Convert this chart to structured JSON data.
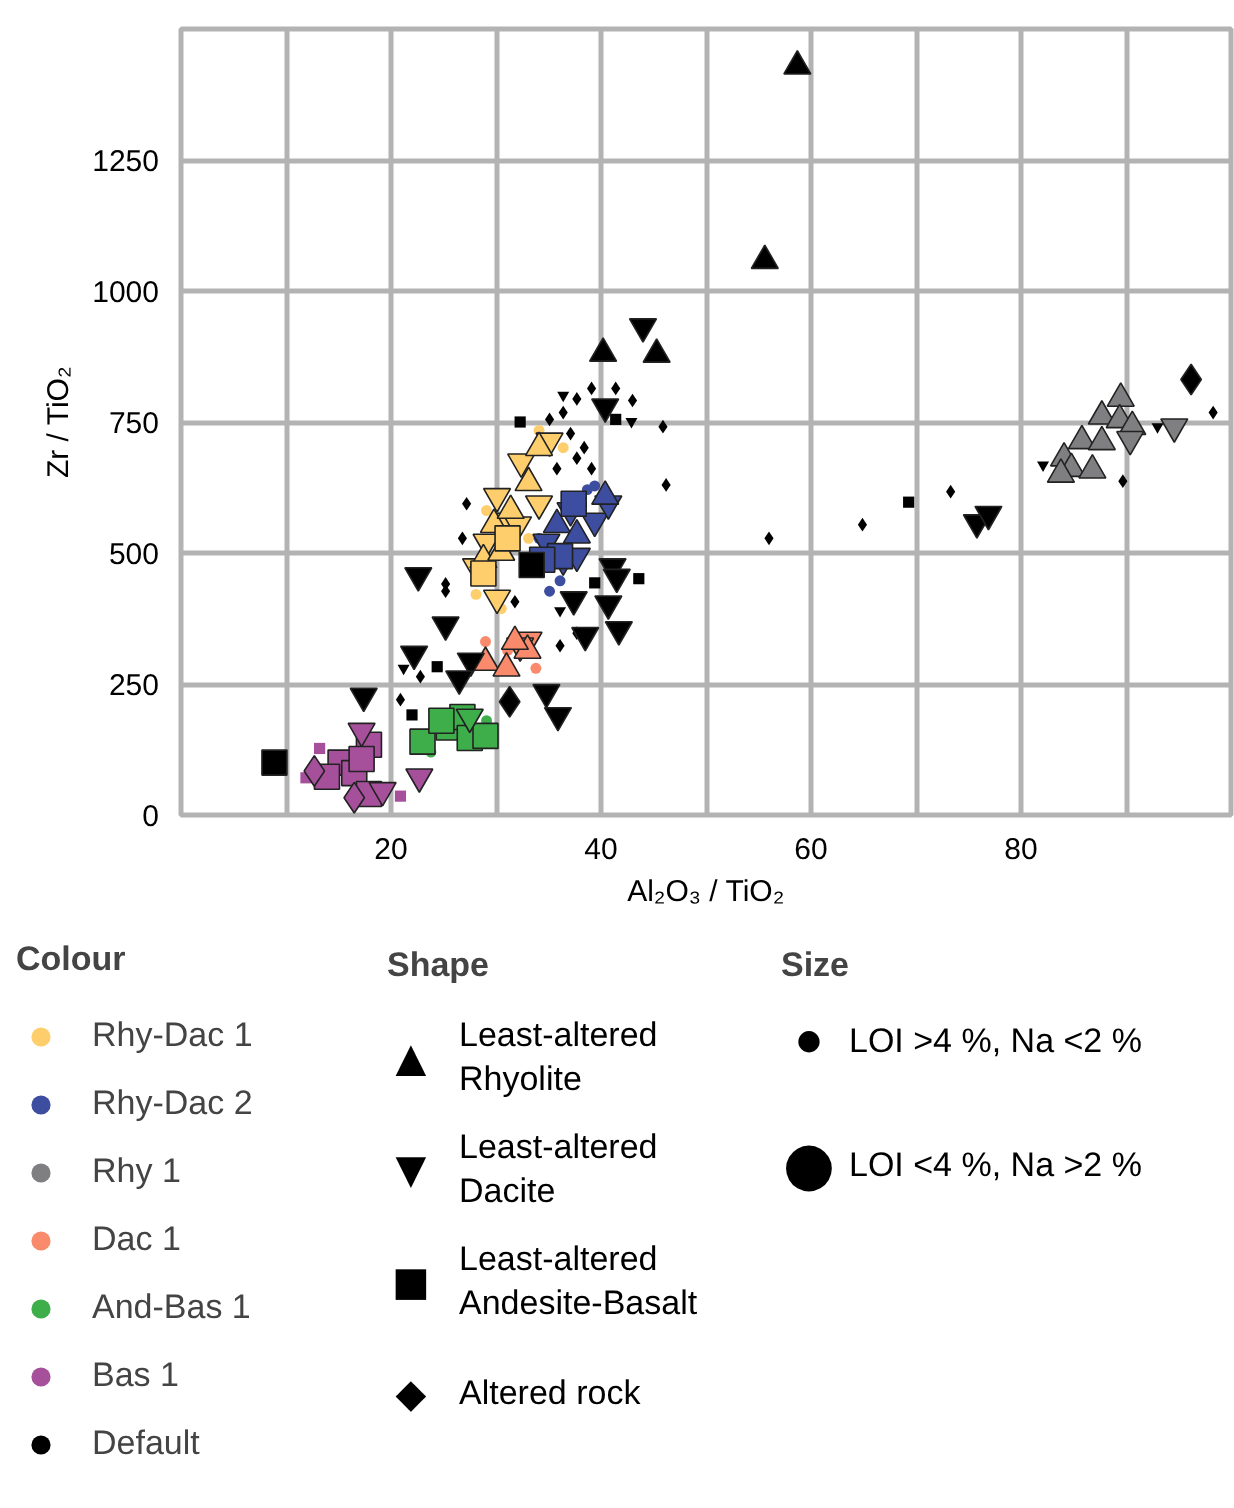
{
  "chart_data": {
    "type": "bubble",
    "xlabel": "Al₂O₃ / TiO₂",
    "ylabel": "Zr / TiO₂",
    "xlim": [
      0,
      100
    ],
    "ylim": [
      0,
      1500
    ],
    "xticks": [
      {
        "value": 10,
        "label": null
      },
      20,
      {
        "value": 30,
        "label": null
      },
      40,
      {
        "value": 50,
        "label": null
      },
      60,
      {
        "value": 70,
        "label": null
      },
      80,
      {
        "value": 90,
        "label": null
      }
    ],
    "yticks": [
      0,
      250,
      500,
      750,
      1000,
      1250
    ],
    "grid": true,
    "legend": "bottom",
    "legend_title": "Colour",
    "annotations": [
      "Shape",
      "▲",
      "Least-altered\nRhyolite",
      "▼",
      "Least-altered\nDacite",
      "■",
      "Least-altered\nAndesite-Basalt",
      "◆",
      "Altered rock",
      "Size",
      "●",
      "LOI >4 %, Na <2 %",
      "●",
      "LOI <4 %, Na >2 %"
    ],
    "series": [
      {
        "name": "Rhy-Dac 1",
        "color": "#fece6c",
        "marker": "circle",
        "x": [
          28.1,
          34.1,
          29.1,
          33.1,
          30.5,
          36.4
        ],
        "values": [
          421,
          734,
          581,
          528,
          394,
          701
        ],
        "sizes": [
          0.15,
          0.15,
          0.15,
          0.15,
          0.15,
          0.15
        ]
      },
      {
        "name": "Rhy-Dac 2",
        "color": "#3d4d9f",
        "marker": "circle",
        "x": [
          35.1,
          38.7,
          34.1,
          36.1,
          39.4
        ],
        "values": [
          427,
          621,
          528,
          447,
          628
        ],
        "sizes": [
          0.15,
          0.15,
          0.15,
          0.15,
          0.15
        ]
      },
      {
        "name": "Rhy 1",
        "color": "#7f7f82",
        "marker": "triangle",
        "x": [
          89.5,
          87.7,
          89.4,
          85.8,
          87.7,
          84.1,
          84.8,
          83.8,
          86.8,
          90.6
        ],
        "values": [
          795,
          761,
          754,
          714,
          712,
          681,
          661,
          650,
          658,
          741
        ],
        "sizes": [
          0.5,
          0.5,
          0.5,
          0.5,
          0.5,
          0.5,
          0.5,
          0.5,
          0.5,
          0.5
        ]
      },
      {
        "name": "Dac 1",
        "color": "#f98a6c",
        "marker": "circle",
        "x": [
          29.0,
          33.8,
          31.1
        ],
        "values": [
          331,
          280,
          314
        ],
        "sizes": [
          0.15,
          0.15,
          0.15
        ]
      },
      {
        "name": "And-Bas 1",
        "color": "#3eae4a",
        "marker": "circle",
        "x": [
          23.8,
          29.1
        ],
        "values": [
          120,
          180
        ],
        "sizes": [
          0.15,
          0.15
        ]
      },
      {
        "name": "Bas 1",
        "color": "#a6509c",
        "marker": "square",
        "x": [
          13.2,
          20.9,
          11.9
        ],
        "values": [
          127,
          36,
          71
        ],
        "sizes": [
          0.2,
          0.2,
          0.2
        ]
      },
      {
        "name": "Default",
        "color": "#000000",
        "marker": "diamond",
        "x": [
          39.1,
          41.4,
          43.0,
          37.7,
          36.4,
          35.1,
          37.1,
          38.4,
          37.7,
          39.1,
          45.9,
          46.2,
          27.2,
          26.8,
          25.2,
          25.2,
          20.9,
          22.8,
          36.1,
          37.7,
          56.0,
          64.9,
          73.3,
          89.7,
          98.3,
          31.8,
          35.8
        ],
        "values": [
          814,
          814,
          791,
          794,
          768,
          755,
          728,
          701,
          681,
          661,
          741,
          630,
          594,
          528,
          441,
          427,
          220,
          264,
          323,
          347,
          528,
          554,
          617,
          637,
          768,
          407,
          661
        ],
        "sizes": [
          0.1,
          0.1,
          0.1,
          0.1,
          0.1,
          0.1,
          0.1,
          0.1,
          0.1,
          0.1,
          0.1,
          0.1,
          0.1,
          0.1,
          0.1,
          0.1,
          0.1,
          0.1,
          0.1,
          0.1,
          0.1,
          0.1,
          0.1,
          0.1,
          0.1,
          0.1,
          0.1
        ]
      },
      {
        "color": "#000000",
        "x": [
          36.4,
          42.9,
          82.1,
          93.0,
          21.2,
          36.1
        ],
        "values": [
          801,
          751,
          668,
          741,
          280,
          390
        ],
        "sizes": [
          0.1,
          0.1,
          0.1,
          0.1,
          0.1,
          0.1
        ]
      },
      {
        "color": "#000000",
        "marker": "square",
        "x": [
          32.3,
          39.4,
          43.6,
          69.3,
          22.0,
          24.4,
          41.4
        ],
        "values": [
          750,
          443,
          451,
          597,
          191,
          283,
          755
        ],
        "sizes": [
          0.2,
          0.2,
          0.2,
          0.2,
          0.2,
          0.2,
          0.2
        ]
      },
      {
        "color": "#fece6c",
        "x": [
          35.1,
          32.4,
          30.1,
          31.1,
          29.1,
          28.1,
          30.1,
          34.1,
          32.1
        ],
        "values": [
          714,
          674,
          608,
          561,
          521,
          474,
          414,
          594,
          554
        ],
        "sizes": [
          0.5,
          0.5,
          0.5,
          0.5,
          0.5,
          0.5,
          0.5,
          0.5,
          0.5
        ]
      },
      {
        "color": "#fece6c",
        "marker": "triangle",
        "x": [
          33.1,
          29.8,
          31.4,
          28.8,
          34.1,
          30.5
        ],
        "values": [
          634,
          554,
          581,
          487,
          701,
          501
        ],
        "sizes": [
          0.5,
          0.5,
          0.5,
          0.5,
          0.5,
          0.5
        ]
      },
      {
        "color": "#fece6c",
        "marker": "square",
        "x": [
          28.8,
          31.1
        ],
        "values": [
          461,
          528
        ],
        "sizes": [
          1,
          1
        ]
      },
      {
        "color": "#3d4d9f",
        "x": [
          34.8,
          36.4,
          37.7,
          39.4,
          37.1,
          40.7
        ],
        "values": [
          521,
          487,
          494,
          561,
          581,
          594
        ],
        "sizes": [
          0.5,
          0.5,
          0.5,
          0.5,
          0.5,
          0.5
        ]
      },
      {
        "color": "#3d4d9f",
        "marker": "triangle",
        "x": [
          35.8,
          40.4,
          37.7
        ],
        "values": [
          554,
          608,
          534
        ],
        "sizes": [
          0.5,
          0.5,
          0.5
        ]
      },
      {
        "color": "#3d4d9f",
        "marker": "square",
        "x": [
          36.1,
          34.4,
          37.4
        ],
        "values": [
          494,
          487,
          594
        ],
        "sizes": [
          1,
          1,
          1
        ]
      },
      {
        "color": "#7f7f82",
        "x": [
          94.6,
          90.4
        ],
        "values": [
          741,
          717
        ],
        "sizes": [
          0.5,
          0.5
        ]
      },
      {
        "color": "#f98a6c",
        "x": [
          33.1,
          32.3
        ],
        "values": [
          334,
          323
        ],
        "sizes": [
          0.5,
          0.5
        ]
      },
      {
        "color": "#f98a6c",
        "marker": "triangle",
        "x": [
          29.0,
          31.0,
          33.0,
          31.8
        ],
        "values": [
          291,
          280,
          314,
          331
        ],
        "sizes": [
          0.5,
          0.5,
          0.5,
          0.5
        ]
      },
      {
        "color": "#3eae4a",
        "marker": "square",
        "x": [
          23.0,
          25.5,
          26.8,
          27.5,
          29.0,
          24.8
        ],
        "values": [
          140,
          167,
          187,
          147,
          151,
          180
        ],
        "sizes": [
          1,
          1,
          1,
          1,
          1,
          1
        ]
      },
      {
        "color": "#3eae4a",
        "x": [
          27.5
        ],
        "values": [
          187
        ],
        "sizes": [
          0.5
        ]
      },
      {
        "color": "#a6509c",
        "marker": "square",
        "x": [
          17.9,
          15.2,
          16.5,
          17.9,
          13.9,
          17.2
        ],
        "values": [
          134,
          100,
          80,
          40,
          73,
          107
        ],
        "sizes": [
          1,
          1,
          1,
          1,
          1,
          1
        ]
      },
      {
        "color": "#a6509c",
        "marker": "diamond",
        "x": [
          12.7,
          16.5
        ],
        "values": [
          84,
          33
        ],
        "sizes": [
          0.5,
          0.5
        ]
      },
      {
        "color": "#a6509c",
        "x": [
          17.2,
          19.2,
          22.7
        ],
        "values": [
          160,
          47,
          73
        ],
        "sizes": [
          0.5,
          0.5,
          0.5
        ]
      },
      {
        "color": "#000000",
        "marker": "triangle",
        "x": [
          58.7,
          55.6,
          40.2,
          45.3
        ],
        "values": [
          1429,
          1058,
          881,
          879
        ],
        "sizes": [
          0.5,
          0.5,
          0.5,
          0.5
        ]
      },
      {
        "color": "#000000",
        "x": [
          44.0,
          40.4,
          22.6,
          25.2,
          22.2,
          27.6,
          26.5,
          17.4,
          34.8,
          35.9,
          41.1,
          41.5,
          37.4,
          40.7,
          38.5,
          41.7,
          75.8,
          76.9
        ],
        "values": [
          932,
          779,
          457,
          363,
          307,
          294,
          260,
          227,
          234,
          190,
          474,
          454,
          411,
          403,
          343,
          354,
          558,
          574
        ],
        "sizes": [
          0.5,
          0.5,
          0.5,
          0.5,
          0.5,
          0.5,
          0.5,
          0.5,
          0.5,
          0.5,
          0.5,
          0.5,
          0.5,
          0.5,
          0.5,
          0.5,
          0.5,
          0.5
        ]
      },
      {
        "color": "#000000",
        "marker": "square",
        "x": [
          8.9,
          33.4
        ],
        "values": [
          100,
          477
        ],
        "sizes": [
          1,
          1
        ]
      },
      {
        "color": "#000000",
        "marker": "diamond",
        "x": [
          31.3,
          96.2
        ],
        "values": [
          216,
          831
        ],
        "sizes": [
          0.5,
          0.5
        ]
      }
    ]
  }
}
